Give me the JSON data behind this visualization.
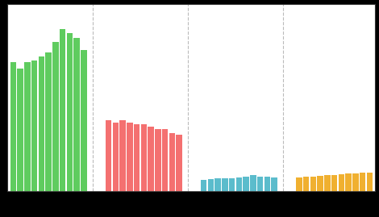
{
  "green_values": [
    62,
    59,
    62,
    63,
    65,
    67,
    72,
    78,
    76,
    74,
    68
  ],
  "red_values": [
    34,
    33,
    34,
    33,
    32,
    32,
    31,
    30,
    30,
    28,
    27
  ],
  "teal_values": [
    5.5,
    5.8,
    6.0,
    6.0,
    6.2,
    6.5,
    6.8,
    7.5,
    7.0,
    6.8,
    6.5
  ],
  "orange_values": [
    6.5,
    6.8,
    7.0,
    7.2,
    7.5,
    7.8,
    8.0,
    8.5,
    8.3,
    8.8,
    9.0
  ],
  "green_color": "#5fcc5f",
  "red_color": "#f47070",
  "teal_color": "#5bbccc",
  "orange_color": "#f0b030",
  "plot_bg_color": "#ffffff",
  "grid_color": "#bbbbbb",
  "figure_bg": "#000000",
  "ylim": [
    0,
    90
  ],
  "n_bars": 11,
  "bar_width": 0.85
}
